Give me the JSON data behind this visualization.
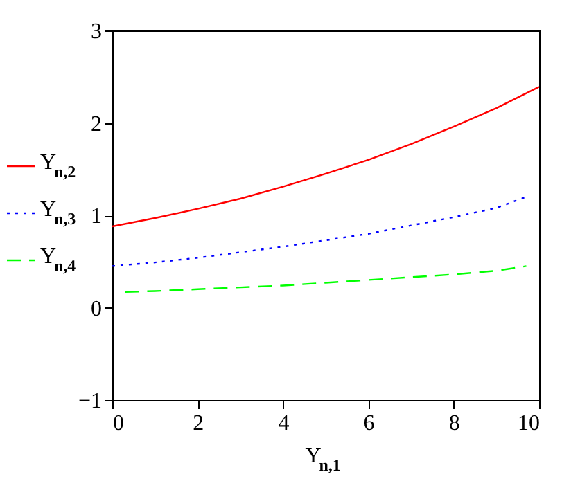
{
  "chart_data": {
    "type": "line",
    "xlabel": "Y$_{n,1}$",
    "xlim": [
      0,
      10
    ],
    "ylim": [
      -1,
      3
    ],
    "xticks": [
      0,
      2,
      4,
      6,
      8,
      10
    ],
    "yticks": [
      -1,
      0,
      1,
      2,
      3
    ],
    "grid": false,
    "legend": "left",
    "marker": "none",
    "series": [
      {
        "name": "Y$_{n,2}$",
        "color": "#ff0000",
        "line_style": "solid",
        "x": [
          0,
          1,
          2,
          3,
          4,
          5,
          6,
          7,
          8,
          9,
          10
        ],
        "values": [
          0.88,
          0.97,
          1.07,
          1.18,
          1.31,
          1.45,
          1.6,
          1.77,
          1.96,
          2.16,
          2.39
        ]
      },
      {
        "name": "Y$_{n,3}$",
        "color": "#0000ff",
        "line_style": "dotted",
        "x": [
          0,
          1,
          2,
          3,
          4,
          5,
          6,
          7,
          8,
          9,
          9.7
        ],
        "values": [
          0.45,
          0.49,
          0.54,
          0.6,
          0.66,
          0.73,
          0.8,
          0.89,
          0.98,
          1.08,
          1.2
        ]
      },
      {
        "name": "Y$_{n,4}$",
        "color": "#00ff00",
        "line_style": "dashed",
        "x": [
          0.3,
          1,
          2,
          3,
          4,
          5,
          6,
          7,
          8,
          9,
          9.7
        ],
        "values": [
          0.17,
          0.18,
          0.2,
          0.22,
          0.24,
          0.27,
          0.3,
          0.33,
          0.36,
          0.4,
          0.45
        ]
      }
    ]
  }
}
